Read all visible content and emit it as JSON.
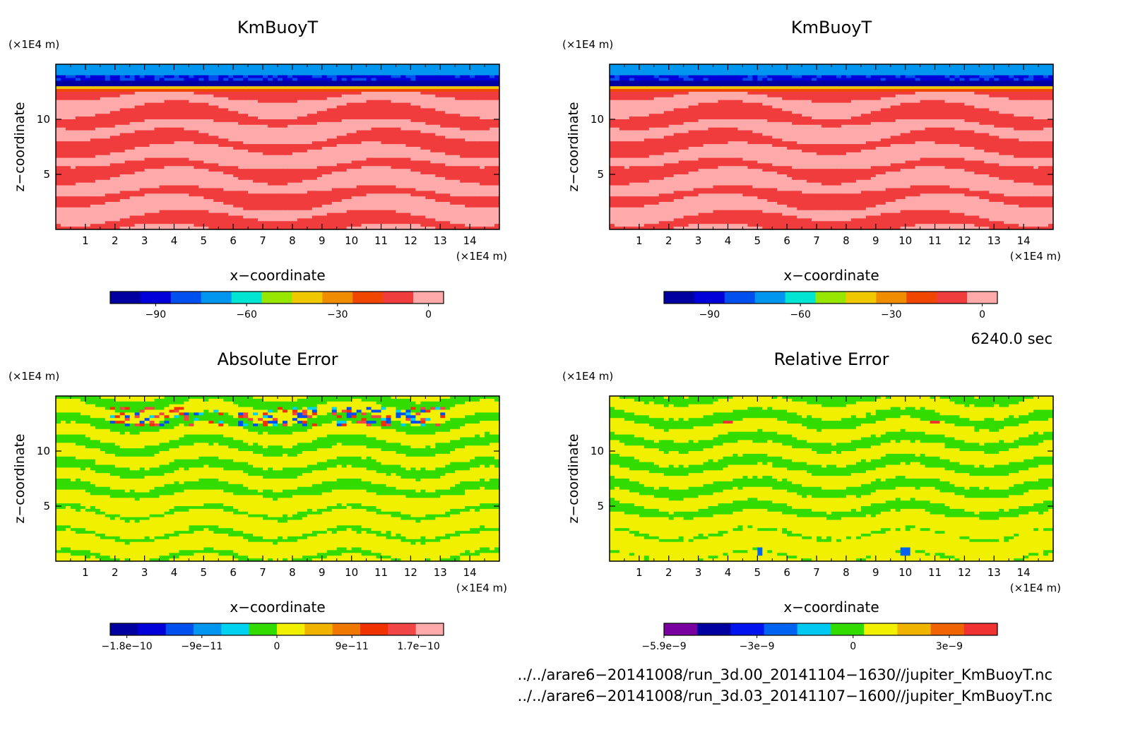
{
  "panels": [
    {
      "title": "KmBuoyT",
      "xlabel": "x−coordinate",
      "ylabel": "z−coordinate",
      "x_unit": "(×1E4 m)",
      "y_unit": "(×1E4 m)",
      "x_ticks": [
        "1",
        "2",
        "3",
        "4",
        "5",
        "6",
        "7",
        "8",
        "9",
        "10",
        "11",
        "12",
        "13",
        "14"
      ],
      "y_ticks": [
        "5",
        "10"
      ],
      "field": "kmbuoyt",
      "colorbar": {
        "colors": [
          "#0000a0",
          "#0000d8",
          "#0050f0",
          "#0096f0",
          "#00e6d2",
          "#96e600",
          "#f0c800",
          "#f08c00",
          "#f04600",
          "#f03c3c",
          "#ffaaaa"
        ],
        "labels": [
          "−90",
          "−60",
          "−30",
          "0"
        ],
        "label_positions": [
          -90,
          -60,
          -30,
          0
        ],
        "range": [
          -105,
          5
        ]
      }
    },
    {
      "title": "KmBuoyT",
      "xlabel": "x−coordinate",
      "ylabel": "z−coordinate",
      "x_unit": "(×1E4 m)",
      "y_unit": "(×1E4 m)",
      "x_ticks": [
        "1",
        "2",
        "3",
        "4",
        "5",
        "6",
        "7",
        "8",
        "9",
        "10",
        "11",
        "12",
        "13",
        "14"
      ],
      "y_ticks": [
        "5",
        "10"
      ],
      "field": "kmbuoyt",
      "colorbar": {
        "colors": [
          "#0000a0",
          "#0000d8",
          "#0050f0",
          "#0096f0",
          "#00e6d2",
          "#96e600",
          "#f0c800",
          "#f08c00",
          "#f04600",
          "#f03c3c",
          "#ffaaaa"
        ],
        "labels": [
          "−90",
          "−60",
          "−30",
          "0"
        ],
        "label_positions": [
          -90,
          -60,
          -30,
          0
        ],
        "range": [
          -105,
          5
        ]
      }
    },
    {
      "title": "Absolute Error",
      "xlabel": "x−coordinate",
      "ylabel": "z−coordinate",
      "x_unit": "(×1E4 m)",
      "y_unit": "(×1E4 m)",
      "x_ticks": [
        "1",
        "2",
        "3",
        "4",
        "5",
        "6",
        "7",
        "8",
        "9",
        "10",
        "11",
        "12",
        "13",
        "14"
      ],
      "y_ticks": [
        "5",
        "10"
      ],
      "field": "abs_error",
      "colorbar": {
        "colors": [
          "#0000a0",
          "#0000d8",
          "#0050f0",
          "#0096f0",
          "#00d2f0",
          "#32dc00",
          "#f0f000",
          "#f0b400",
          "#f07800",
          "#f03200",
          "#f04646",
          "#ffaaaa"
        ],
        "labels": [
          "−1.8e−10",
          "−9e−11",
          "0",
          "9e−11",
          "1.7e−10"
        ],
        "label_positions": [
          -1.8e-10,
          -9e-11,
          0,
          9e-11,
          1.7e-10
        ],
        "range": [
          -2e-10,
          2e-10
        ]
      }
    },
    {
      "title": "Relative Error",
      "xlabel": "x−coordinate",
      "ylabel": "z−coordinate",
      "x_unit": "(×1E4 m)",
      "y_unit": "(×1E4 m)",
      "x_ticks": [
        "1",
        "2",
        "3",
        "4",
        "5",
        "6",
        "7",
        "8",
        "9",
        "10",
        "11",
        "12",
        "13",
        "14"
      ],
      "y_ticks": [
        "5",
        "10"
      ],
      "field": "rel_error",
      "colorbar": {
        "colors": [
          "#7800a0",
          "#0000a0",
          "#0014f0",
          "#0064f0",
          "#00c8f0",
          "#32dc00",
          "#f0f000",
          "#f0b400",
          "#f06400",
          "#f03232"
        ],
        "labels": [
          "−5.9e−9",
          "−3e−9",
          "0",
          "3e−9"
        ],
        "label_positions": [
          -5.9e-09,
          -3e-09,
          0,
          3e-09
        ],
        "range": [
          -5.9e-09,
          4.5e-09
        ]
      }
    }
  ],
  "time_label": "6240.0 sec",
  "file_paths": [
    "../../arare6−20141008/run_3d.00_20141104−1630//jupiter_KmBuoyT.nc",
    "../../arare6−20141008/run_3d.03_20141107−1600//jupiter_KmBuoyT.nc"
  ],
  "chart_data": [
    {
      "type": "heatmap",
      "title": "KmBuoyT",
      "xlabel": "x−coordinate",
      "ylabel": "z−coordinate",
      "xlim": [
        0,
        15
      ],
      "ylim": [
        0,
        15
      ],
      "legend_levels": [
        -90,
        -60,
        -30,
        0
      ],
      "description_values": {
        "z_0_to_12.5": "0 to -10",
        "z_12.5_to_15": "-105 to -60"
      }
    },
    {
      "type": "heatmap",
      "title": "KmBuoyT",
      "xlabel": "x−coordinate",
      "ylabel": "z−coordinate",
      "xlim": [
        0,
        15
      ],
      "ylim": [
        0,
        15
      ],
      "legend_levels": [
        -90,
        -60,
        -30,
        0
      ]
    },
    {
      "type": "heatmap",
      "title": "Absolute Error",
      "xlabel": "x−coordinate",
      "ylabel": "z−coordinate",
      "xlim": [
        0,
        15
      ],
      "ylim": [
        0,
        15
      ],
      "legend_levels": [
        -1.8e-10,
        -9e-11,
        0,
        9e-11,
        1.7e-10
      ]
    },
    {
      "type": "heatmap",
      "title": "Relative Error",
      "xlabel": "x−coordinate",
      "ylabel": "z−coordinate",
      "xlim": [
        0,
        15
      ],
      "ylim": [
        0,
        15
      ],
      "legend_levels": [
        -5.9e-09,
        -3e-09,
        0,
        3e-09
      ]
    }
  ]
}
